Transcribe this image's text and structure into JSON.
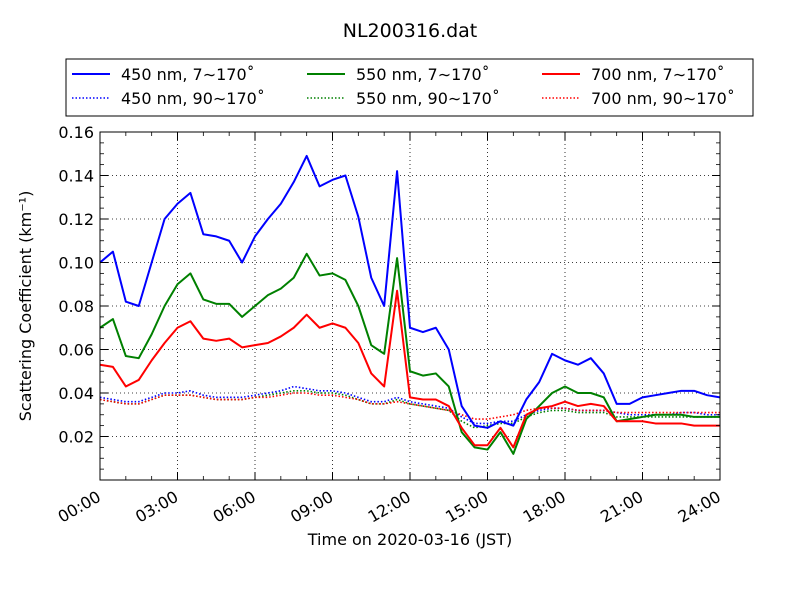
{
  "chart_data": {
    "type": "line",
    "title": "NL200316.dat",
    "xlabel": "Time on 2020-03-16 (JST)",
    "ylabel": "Scattering Coefficient (km⁻¹)",
    "xlim": [
      "00:00",
      "24:00"
    ],
    "ylim": [
      0.0,
      0.16
    ],
    "x_ticks": [
      "00:00",
      "03:00",
      "06:00",
      "09:00",
      "12:00",
      "15:00",
      "18:00",
      "21:00",
      "24:00"
    ],
    "y_ticks": [
      "0.02",
      "0.04",
      "0.06",
      "0.08",
      "0.10",
      "0.12",
      "0.14",
      "0.16"
    ],
    "grid": true,
    "legend_position": "top-center",
    "x_hours": [
      0,
      0.5,
      1,
      1.5,
      2,
      2.5,
      3,
      3.5,
      4,
      4.5,
      5,
      5.5,
      6,
      6.5,
      7,
      7.5,
      8,
      8.5,
      9,
      9.5,
      10,
      10.5,
      11,
      11.5,
      12,
      12.5,
      13,
      13.5,
      14,
      14.5,
      15,
      15.5,
      16,
      16.5,
      17,
      17.5,
      18,
      18.5,
      19,
      19.5,
      20,
      20.5,
      21,
      21.5,
      22,
      22.5,
      23,
      23.5,
      24
    ],
    "series": [
      {
        "name": "450 nm, 7∼170˚",
        "color": "#0000ff",
        "style": "solid",
        "values": [
          0.1,
          0.105,
          0.082,
          0.08,
          0.1,
          0.12,
          0.127,
          0.132,
          0.113,
          0.112,
          0.11,
          0.1,
          0.112,
          0.12,
          0.127,
          0.137,
          0.149,
          0.135,
          0.138,
          0.14,
          0.121,
          0.093,
          0.08,
          0.142,
          0.07,
          0.068,
          0.07,
          0.06,
          0.034,
          0.025,
          0.024,
          0.027,
          0.025,
          0.037,
          0.045,
          0.058,
          0.055,
          0.053,
          0.056,
          0.049,
          0.035,
          0.035,
          0.038,
          0.039,
          0.04,
          0.041,
          0.041,
          0.039,
          0.038
        ]
      },
      {
        "name": "450 nm, 90∼170˚",
        "color": "#0000ff",
        "style": "dotted",
        "values": [
          0.038,
          0.037,
          0.036,
          0.036,
          0.038,
          0.04,
          0.04,
          0.041,
          0.039,
          0.038,
          0.038,
          0.038,
          0.039,
          0.04,
          0.041,
          0.043,
          0.042,
          0.041,
          0.041,
          0.04,
          0.038,
          0.036,
          0.036,
          0.038,
          0.036,
          0.035,
          0.034,
          0.033,
          0.029,
          0.026,
          0.026,
          0.027,
          0.027,
          0.03,
          0.032,
          0.033,
          0.033,
          0.032,
          0.032,
          0.032,
          0.031,
          0.03,
          0.03,
          0.03,
          0.03,
          0.031,
          0.031,
          0.03,
          0.03
        ]
      },
      {
        "name": "550 nm, 7∼170˚",
        "color": "#008000",
        "style": "solid",
        "values": [
          0.07,
          0.074,
          0.057,
          0.056,
          0.067,
          0.08,
          0.09,
          0.095,
          0.083,
          0.081,
          0.081,
          0.075,
          0.08,
          0.085,
          0.088,
          0.093,
          0.104,
          0.094,
          0.095,
          0.092,
          0.08,
          0.062,
          0.058,
          0.102,
          0.05,
          0.048,
          0.049,
          0.043,
          0.022,
          0.015,
          0.014,
          0.022,
          0.012,
          0.028,
          0.034,
          0.04,
          0.043,
          0.04,
          0.04,
          0.038,
          0.027,
          0.028,
          0.029,
          0.03,
          0.03,
          0.03,
          0.029,
          0.029,
          0.029
        ]
      },
      {
        "name": "550 nm, 90∼170˚",
        "color": "#008000",
        "style": "dotted",
        "values": [
          0.037,
          0.036,
          0.035,
          0.035,
          0.037,
          0.039,
          0.039,
          0.039,
          0.038,
          0.037,
          0.037,
          0.037,
          0.038,
          0.039,
          0.04,
          0.041,
          0.041,
          0.04,
          0.04,
          0.039,
          0.037,
          0.035,
          0.035,
          0.037,
          0.035,
          0.034,
          0.033,
          0.032,
          0.027,
          0.024,
          0.025,
          0.026,
          0.026,
          0.029,
          0.031,
          0.032,
          0.032,
          0.031,
          0.031,
          0.031,
          0.029,
          0.029,
          0.029,
          0.029,
          0.029,
          0.029,
          0.029,
          0.029,
          0.029
        ]
      },
      {
        "name": "700 nm, 7∼170˚",
        "color": "#ff0000",
        "style": "solid",
        "values": [
          0.053,
          0.052,
          0.043,
          0.046,
          0.055,
          0.063,
          0.07,
          0.073,
          0.065,
          0.064,
          0.065,
          0.061,
          0.062,
          0.063,
          0.066,
          0.07,
          0.076,
          0.07,
          0.072,
          0.07,
          0.063,
          0.049,
          0.043,
          0.087,
          0.038,
          0.037,
          0.037,
          0.034,
          0.024,
          0.016,
          0.016,
          0.024,
          0.015,
          0.03,
          0.033,
          0.034,
          0.036,
          0.034,
          0.035,
          0.034,
          0.027,
          0.027,
          0.027,
          0.026,
          0.026,
          0.026,
          0.025,
          0.025,
          0.025
        ]
      },
      {
        "name": "700 nm, 90∼170˚",
        "color": "#ff0000",
        "style": "dotted",
        "values": [
          0.037,
          0.036,
          0.035,
          0.035,
          0.037,
          0.039,
          0.039,
          0.039,
          0.038,
          0.037,
          0.037,
          0.037,
          0.038,
          0.038,
          0.039,
          0.04,
          0.04,
          0.039,
          0.039,
          0.038,
          0.037,
          0.035,
          0.035,
          0.036,
          0.035,
          0.034,
          0.033,
          0.032,
          0.03,
          0.028,
          0.028,
          0.029,
          0.03,
          0.032,
          0.033,
          0.033,
          0.033,
          0.032,
          0.032,
          0.032,
          0.031,
          0.031,
          0.031,
          0.031,
          0.031,
          0.031,
          0.031,
          0.031,
          0.031
        ]
      }
    ]
  }
}
